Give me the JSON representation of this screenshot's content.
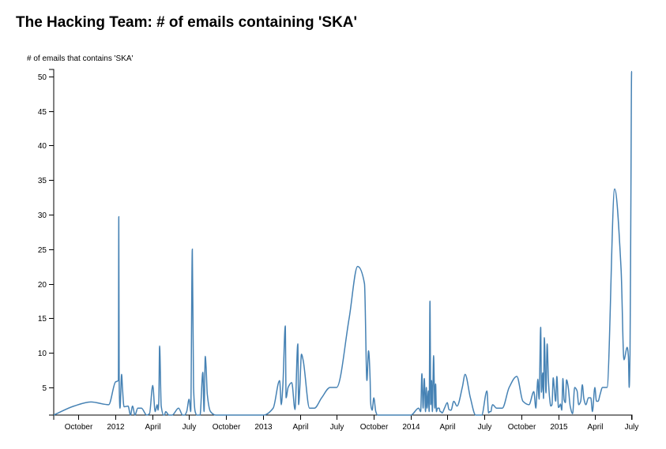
{
  "chart_data": {
    "type": "line",
    "title": "The Hacking Team: # of emails containing 'SKA'",
    "xlabel": "",
    "ylabel": "# of emails that contains 'SKA'",
    "ylim": [
      1,
      51
    ],
    "xlim": [
      "2011-08-01",
      "2015-07-02"
    ],
    "grid": false,
    "y_ticks": [
      5,
      10,
      15,
      20,
      25,
      30,
      35,
      40,
      45,
      50
    ],
    "x_ticks": [
      {
        "date": "2011-10-01",
        "label": "October"
      },
      {
        "date": "2012-01-01",
        "label": "2012"
      },
      {
        "date": "2012-04-01",
        "label": "April"
      },
      {
        "date": "2012-07-01",
        "label": "July"
      },
      {
        "date": "2012-10-01",
        "label": "October"
      },
      {
        "date": "2013-01-01",
        "label": "2013"
      },
      {
        "date": "2013-04-01",
        "label": "April"
      },
      {
        "date": "2013-07-01",
        "label": "July"
      },
      {
        "date": "2013-10-01",
        "label": "October"
      },
      {
        "date": "2014-01-01",
        "label": "2014"
      },
      {
        "date": "2014-04-01",
        "label": "April"
      },
      {
        "date": "2014-07-01",
        "label": "July"
      },
      {
        "date": "2014-10-01",
        "label": "October"
      },
      {
        "date": "2015-01-01",
        "label": "2015"
      },
      {
        "date": "2015-04-01",
        "label": "April"
      },
      {
        "date": "2015-07-01",
        "label": "July"
      }
    ],
    "series": [
      {
        "color": "#4682b4",
        "x": [
          "2011-08-01",
          "2011-09-20",
          "2011-11-01",
          "2011-12-15",
          "2012-01-01",
          "2012-01-08",
          "2012-01-09",
          "2012-01-10",
          "2012-01-12",
          "2012-01-16",
          "2012-01-18",
          "2012-01-22",
          "2012-02-01",
          "2012-02-07",
          "2012-02-12",
          "2012-02-18",
          "2012-02-25",
          "2012-03-05",
          "2012-03-18",
          "2012-03-25",
          "2012-04-02",
          "2012-04-08",
          "2012-04-13",
          "2012-04-15",
          "2012-04-17",
          "2012-04-19",
          "2012-04-23",
          "2012-04-29",
          "2012-05-01",
          "2012-05-04",
          "2012-05-12",
          "2012-05-20",
          "2012-06-05",
          "2012-06-15",
          "2012-06-20",
          "2012-06-25",
          "2012-07-01",
          "2012-07-05",
          "2012-07-09",
          "2012-07-12",
          "2012-07-16",
          "2012-07-20",
          "2012-07-28",
          "2012-08-04",
          "2012-08-07",
          "2012-08-10",
          "2012-08-12",
          "2012-08-15",
          "2012-08-23",
          "2012-09-05",
          "2012-10-01",
          "2012-12-01",
          "2013-01-01",
          "2013-01-25",
          "2013-02-10",
          "2013-02-14",
          "2013-02-18",
          "2013-02-24",
          "2013-02-26",
          "2013-03-03",
          "2013-03-12",
          "2013-03-20",
          "2013-03-27",
          "2013-03-29",
          "2013-04-01",
          "2013-04-05",
          "2013-04-09",
          "2013-04-25",
          "2013-05-07",
          "2013-05-25",
          "2013-06-15",
          "2013-07-01",
          "2013-08-01",
          "2013-08-22",
          "2013-09-08",
          "2013-09-14",
          "2013-09-18",
          "2013-09-22",
          "2013-09-23",
          "2013-09-25",
          "2013-09-27",
          "2013-10-01",
          "2013-10-06",
          "2013-10-10",
          "2013-10-16",
          "2013-10-25",
          "2013-11-10",
          "2013-12-01",
          "2014-01-01",
          "2014-01-20",
          "2014-01-25",
          "2014-01-28",
          "2014-01-31",
          "2014-02-03",
          "2014-02-06",
          "2014-02-08",
          "2014-02-10",
          "2014-02-13",
          "2014-02-15",
          "2014-02-17",
          "2014-02-19",
          "2014-02-21",
          "2014-02-23",
          "2014-02-26",
          "2014-03-01",
          "2014-03-03",
          "2014-03-05",
          "2014-03-08",
          "2014-03-10",
          "2014-03-12",
          "2014-03-14",
          "2014-03-16",
          "2014-03-19",
          "2014-03-25",
          "2014-04-01",
          "2014-04-05",
          "2014-04-10",
          "2014-04-17",
          "2014-04-25",
          "2014-05-08",
          "2014-05-15",
          "2014-05-28",
          "2014-06-10",
          "2014-06-25",
          "2014-07-08",
          "2014-07-12",
          "2014-07-15",
          "2014-07-18",
          "2014-07-20",
          "2014-07-22",
          "2014-08-01",
          "2014-08-15",
          "2014-09-01",
          "2014-09-20",
          "2014-10-05",
          "2014-10-20",
          "2014-11-01",
          "2014-11-06",
          "2014-11-08",
          "2014-11-11",
          "2014-11-14",
          "2014-11-18",
          "2014-11-20",
          "2014-11-23",
          "2014-11-25",
          "2014-11-27",
          "2014-12-01",
          "2014-12-04",
          "2014-12-07",
          "2014-12-10",
          "2014-12-13",
          "2014-12-16",
          "2014-12-19",
          "2014-12-22",
          "2014-12-25",
          "2014-12-28",
          "2015-01-01",
          "2015-01-03",
          "2015-01-06",
          "2015-01-09",
          "2015-01-12",
          "2015-01-15",
          "2015-01-18",
          "2015-01-21",
          "2015-01-25",
          "2015-01-30",
          "2015-02-05",
          "2015-02-10",
          "2015-02-16",
          "2015-02-20",
          "2015-02-25",
          "2015-03-01",
          "2015-03-05",
          "2015-03-10",
          "2015-03-16",
          "2015-03-22",
          "2015-03-26",
          "2015-04-01",
          "2015-04-05",
          "2015-04-09",
          "2015-04-14",
          "2015-04-20",
          "2015-05-01",
          "2015-05-20",
          "2015-06-05",
          "2015-06-12",
          "2015-06-20",
          "2015-06-23",
          "2015-06-25",
          "2015-06-27",
          "2015-06-29",
          "2015-07-01",
          "2015-07-02"
        ],
        "values": [
          1,
          2.3,
          2.9,
          2.5,
          5.8,
          6,
          29.7,
          5.5,
          2,
          6.9,
          5,
          2.2,
          2.3,
          1,
          2.3,
          1,
          2,
          2,
          1,
          1.2,
          5.3,
          1.5,
          2.5,
          1.7,
          3,
          11,
          2.3,
          1,
          1,
          1.5,
          1,
          1,
          2,
          1,
          1,
          1.5,
          3.3,
          1.5,
          25,
          5,
          1.5,
          1,
          1,
          7.2,
          1.5,
          9.5,
          8,
          4,
          1.5,
          1,
          1,
          1,
          1,
          2,
          6,
          2.5,
          5.3,
          13.9,
          3.5,
          5,
          5.7,
          1.8,
          11.3,
          2.5,
          5,
          9.8,
          9,
          2,
          2,
          3.5,
          5,
          5,
          15,
          22.5,
          20,
          6,
          10.3,
          6,
          3,
          2,
          1.7,
          3.5,
          1.5,
          1,
          1,
          1,
          1,
          1,
          1,
          2,
          1.5,
          7,
          2,
          6.3,
          1.5,
          5,
          2,
          4.5,
          1.5,
          17.5,
          2.5,
          6,
          1.5,
          9.6,
          2,
          5.5,
          1.5,
          2,
          2,
          2,
          1.5,
          1.5,
          1.3,
          2,
          2.8,
          1.8,
          1.7,
          3,
          2.3,
          5,
          6.9,
          3.5,
          1,
          1,
          4.5,
          1.3,
          1.5,
          1.5,
          2.2,
          2.5,
          2,
          2,
          5,
          6.6,
          3,
          2.5,
          4.4,
          2,
          3.6,
          6.2,
          3.3,
          13.7,
          4.3,
          7.1,
          3.4,
          12.2,
          4.2,
          11.3,
          6.2,
          3.5,
          2.3,
          2.5,
          6.4,
          4.6,
          3,
          6.6,
          2.1,
          2.2,
          2.6,
          1.7,
          6.3,
          3.2,
          2.8,
          6.1,
          5.1,
          2.3,
          1.2,
          5,
          4.5,
          2.5,
          3,
          5.4,
          3.3,
          2.5,
          3.5,
          3.5,
          1.5,
          5,
          3,
          3,
          4,
          5,
          5,
          33.7,
          22,
          9,
          10.8,
          9.5,
          5,
          9.8,
          30,
          50.7,
          50.7
        ]
      }
    ]
  }
}
